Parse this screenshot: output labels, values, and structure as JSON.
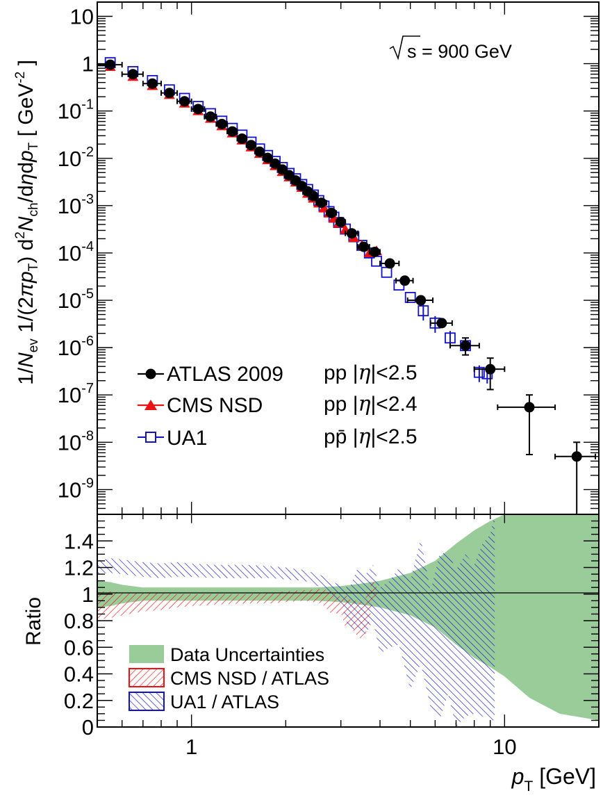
{
  "chart_data": [
    {
      "type": "scatter",
      "panel": "spectrum",
      "scale": {
        "x": "log",
        "y": "log"
      },
      "xlim": [
        0.5,
        20
      ],
      "ylim": [
        3e-10,
        20
      ],
      "grid": false,
      "annotation": {
        "sqrt_symbol": "√",
        "text": "s = 900 GeV"
      },
      "ylabel": "1/N_ev 1/(2πp_T) d²N_ch/dηdp_T [ GeV⁻² ]",
      "y_ticks": [
        {
          "value": 10,
          "base": "10",
          "exp": ""
        },
        {
          "value": 1,
          "base": "1",
          "exp": ""
        },
        {
          "value": 0.1,
          "base": "10",
          "exp": "-1"
        },
        {
          "value": 0.01,
          "base": "10",
          "exp": "-2"
        },
        {
          "value": 0.001,
          "base": "10",
          "exp": "-3"
        },
        {
          "value": 0.0001,
          "base": "10",
          "exp": "-4"
        },
        {
          "value": 1e-05,
          "base": "10",
          "exp": "-5"
        },
        {
          "value": 1e-06,
          "base": "10",
          "exp": "-6"
        },
        {
          "value": 1e-07,
          "base": "10",
          "exp": "-7"
        },
        {
          "value": 1e-08,
          "base": "10",
          "exp": "-8"
        },
        {
          "value": 1e-09,
          "base": "10",
          "exp": "-9"
        }
      ],
      "series": [
        {
          "name": "ATLAS 2009",
          "note": "pp |η|<2.5",
          "color": "#000000",
          "x": [
            0.55,
            0.65,
            0.75,
            0.85,
            0.95,
            1.05,
            1.15,
            1.25,
            1.35,
            1.45,
            1.55,
            1.65,
            1.75,
            1.85,
            1.95,
            2.05,
            2.15,
            2.25,
            2.35,
            2.45,
            2.6,
            2.8,
            3.0,
            3.25,
            3.55,
            3.85,
            4.3,
            4.8,
            5.4,
            6.3,
            7.5,
            9.0,
            12.0,
            17.0
          ],
          "y": [
            0.95,
            0.6,
            0.38,
            0.24,
            0.16,
            0.11,
            0.076,
            0.053,
            0.037,
            0.026,
            0.019,
            0.0138,
            0.0102,
            0.0077,
            0.0058,
            0.0044,
            0.0034,
            0.0026,
            0.002,
            0.0016,
            0.00115,
            0.0007,
            0.00045,
            0.00026,
            0.000135,
            0.000105,
            6e-05,
            2.6e-05,
            1e-05,
            3.3e-06,
            1.1e-06,
            3.5e-07,
            5.5e-08,
            5e-09
          ],
          "xerr": [
            0.05,
            0.05,
            0.05,
            0.05,
            0.05,
            0.05,
            0.05,
            0.05,
            0.05,
            0.05,
            0.05,
            0.05,
            0.05,
            0.05,
            0.05,
            0.05,
            0.05,
            0.05,
            0.05,
            0.05,
            0.1,
            0.1,
            0.1,
            0.15,
            0.15,
            0.15,
            0.3,
            0.3,
            0.5,
            0.5,
            0.8,
            1.0,
            2.5,
            2.5
          ],
          "yerr": [
            {
              "x": 7.5,
              "lo": 7e-07,
              "hi": 1.6e-06
            },
            {
              "x": 9.0,
              "lo": 1.3e-07,
              "hi": 6e-07
            },
            {
              "x": 12.0,
              "lo": 5.5e-09,
              "hi": 1e-07
            },
            {
              "x": 17.0,
              "lo": 2e-10,
              "hi": 1e-08
            }
          ]
        },
        {
          "name": "CMS NSD",
          "note": "pp |η|<2.4",
          "color": "#ee1111",
          "x": [
            0.55,
            0.65,
            0.75,
            0.85,
            0.95,
            1.05,
            1.15,
            1.25,
            1.35,
            1.45,
            1.55,
            1.65,
            1.75,
            1.85,
            1.95,
            2.05,
            2.15,
            2.25,
            2.35,
            2.45,
            2.55,
            2.65,
            2.75,
            2.85,
            2.95,
            3.1,
            3.3,
            3.5,
            3.7,
            3.9
          ],
          "y": [
            0.86,
            0.53,
            0.34,
            0.22,
            0.145,
            0.1,
            0.069,
            0.048,
            0.034,
            0.024,
            0.0172,
            0.0125,
            0.0092,
            0.0069,
            0.0052,
            0.004,
            0.0031,
            0.0024,
            0.0018,
            0.00142,
            0.00112,
            0.00088,
            0.00069,
            0.00054,
            0.00042,
            0.00031,
            0.00021,
            0.000145,
            0.0001,
            0.00011
          ]
        },
        {
          "name": "UA1",
          "note": "pp̄ |η|<2.5",
          "color": "#1111cc",
          "x": [
            0.55,
            0.65,
            0.75,
            0.85,
            0.95,
            1.05,
            1.15,
            1.25,
            1.35,
            1.45,
            1.55,
            1.65,
            1.75,
            1.85,
            1.95,
            2.05,
            2.15,
            2.25,
            2.35,
            2.45,
            2.55,
            2.65,
            2.75,
            2.85,
            2.95,
            3.1,
            3.3,
            3.5,
            3.7,
            3.9,
            4.2,
            4.6,
            5.0,
            5.5,
            6.0,
            6.7,
            7.5,
            8.3,
            8.8
          ],
          "y": [
            1.05,
            0.68,
            0.44,
            0.28,
            0.185,
            0.125,
            0.088,
            0.061,
            0.043,
            0.031,
            0.022,
            0.0158,
            0.0115,
            0.0086,
            0.0064,
            0.0048,
            0.0037,
            0.0028,
            0.0022,
            0.00168,
            0.00128,
            0.00098,
            0.00075,
            0.00057,
            0.00044,
            0.00032,
            0.00022,
            0.000145,
            0.0001,
            6.7e-05,
            3.9e-05,
            2.1e-05,
            1.15e-05,
            6e-06,
            3.3e-06,
            1.6e-06,
            1.1e-06,
            3e-07,
            2.8e-07
          ]
        }
      ]
    },
    {
      "type": "area",
      "panel": "ratio",
      "scale": {
        "x": "log",
        "y": "linear"
      },
      "xlim": [
        0.5,
        20
      ],
      "ylim": [
        0,
        1.6
      ],
      "ylabel": "Ratio",
      "xlabel": "p_T [GeV]",
      "x_ticks": [
        {
          "value": 1,
          "label": "1"
        },
        {
          "value": 10,
          "label": "10"
        }
      ],
      "y_ticks": [
        {
          "value": 0,
          "label": "0"
        },
        {
          "value": 0.2,
          "label": "0.2"
        },
        {
          "value": 0.4,
          "label": "0.4"
        },
        {
          "value": 0.6,
          "label": "0.6"
        },
        {
          "value": 0.8,
          "label": "0.8"
        },
        {
          "value": 1,
          "label": "1"
        },
        {
          "value": 1.2,
          "label": "1.2"
        },
        {
          "value": 1.4,
          "label": "1.4"
        }
      ],
      "reference_line": 1.0,
      "series": [
        {
          "name": "Data Uncertainties",
          "color": "#99cc99",
          "x": [
            0.5,
            0.55,
            0.6,
            0.7,
            0.8,
            1.0,
            1.5,
            2.0,
            2.5,
            3.0,
            3.5,
            4.0,
            5.0,
            6.0,
            7.0,
            8.0,
            9.0,
            10.0,
            12.0,
            15.0,
            20.0
          ],
          "upper": [
            1.1,
            1.09,
            1.07,
            1.05,
            1.05,
            1.05,
            1.05,
            1.05,
            1.05,
            1.06,
            1.08,
            1.1,
            1.16,
            1.25,
            1.38,
            1.48,
            1.55,
            1.6,
            1.6,
            1.6,
            1.6
          ],
          "lower": [
            0.9,
            0.91,
            0.93,
            0.95,
            0.95,
            0.95,
            0.95,
            0.95,
            0.95,
            0.94,
            0.92,
            0.9,
            0.84,
            0.75,
            0.62,
            0.52,
            0.45,
            0.38,
            0.22,
            0.1,
            0.05
          ]
        },
        {
          "name": "CMS NSD / ATLAS",
          "color": "#ee1111",
          "x": [
            0.5,
            0.55,
            0.6,
            0.7,
            0.8,
            0.9,
            1.0,
            1.2,
            1.5,
            1.8,
            2.0,
            2.3,
            2.6,
            2.8,
            3.0,
            3.1,
            3.2,
            3.3,
            3.4,
            3.5,
            3.6,
            3.7,
            3.8,
            3.9
          ],
          "upper": [
            1.02,
            1.02,
            1.01,
            1.01,
            1.01,
            1.0,
            1.0,
            1.0,
            1.0,
            1.01,
            1.02,
            1.03,
            1.04,
            1.02,
            0.98,
            1.0,
            0.96,
            0.95,
            0.95,
            0.94,
            0.97,
            1.04,
            1.1,
            1.05
          ],
          "lower": [
            0.81,
            0.82,
            0.84,
            0.87,
            0.88,
            0.9,
            0.91,
            0.92,
            0.93,
            0.93,
            0.94,
            0.95,
            0.93,
            0.85,
            0.86,
            0.75,
            0.78,
            0.72,
            0.68,
            0.66,
            0.7,
            0.8,
            0.96,
            0.95
          ]
        },
        {
          "name": "UA1 / ATLAS",
          "color": "#1111cc",
          "x": [
            0.5,
            0.55,
            0.6,
            0.7,
            0.8,
            0.9,
            1.0,
            1.2,
            1.5,
            1.8,
            2.0,
            2.3,
            2.6,
            2.8,
            3.0,
            3.2,
            3.4,
            3.6,
            3.8,
            4.0,
            4.3,
            4.6,
            5.0,
            5.4,
            5.8,
            6.2,
            6.6,
            7.0,
            7.5,
            8.0,
            8.5,
            9.0,
            9.3
          ],
          "upper": [
            1.25,
            1.27,
            1.26,
            1.24,
            1.23,
            1.24,
            1.23,
            1.22,
            1.22,
            1.21,
            1.2,
            1.18,
            1.14,
            1.1,
            1.06,
            1.05,
            1.2,
            1.15,
            1.22,
            1.05,
            1.1,
            1.2,
            1.1,
            1.42,
            1.02,
            1.3,
            1.32,
            1.18,
            1.3,
            1.22,
            1.38,
            1.45,
            1.6
          ],
          "lower": [
            1.15,
            1.16,
            1.15,
            1.13,
            1.12,
            1.13,
            1.13,
            1.12,
            1.12,
            1.12,
            1.11,
            1.1,
            1.05,
            0.98,
            0.94,
            0.72,
            0.75,
            0.7,
            0.8,
            0.55,
            0.6,
            0.62,
            0.28,
            0.48,
            0.15,
            0.05,
            0.25,
            0.0,
            0.08,
            0.1,
            0.08,
            0.05,
            0.05
          ]
        }
      ]
    }
  ],
  "legend_top": [
    {
      "label": "ATLAS 2009",
      "note_prefix": "pp |",
      "note_eta": "η",
      "note_suffix": "|<2.5"
    },
    {
      "label": "CMS NSD",
      "note_prefix": "pp |",
      "note_eta": "η",
      "note_suffix": "|<2.4"
    },
    {
      "label": "UA1",
      "note_prefix": "pp̄ |",
      "note_eta": "η",
      "note_suffix": "|<2.5"
    }
  ],
  "legend_bottom": [
    {
      "label": "Data Uncertainties"
    },
    {
      "label": "CMS NSD / ATLAS"
    },
    {
      "label": "UA1 / ATLAS"
    }
  ],
  "xlabel_parts": {
    "p": "p",
    "sub": "T",
    "unit": " [GeV]"
  },
  "ylabel_parts": {
    "a": "1/",
    "N": "N",
    "ev": "ev",
    "b": " 1/(2",
    "pi": "π",
    "p": "p",
    "T": "T",
    "c": ") d",
    "two": "2",
    "N2": "N",
    "ch": "ch",
    "d": "/d",
    "eta": "η",
    "e": "d",
    "p2": "p",
    "T2": "T",
    "f": " [ GeV",
    "exp": "-2",
    "g": " ]"
  },
  "ratio_label": "Ratio"
}
